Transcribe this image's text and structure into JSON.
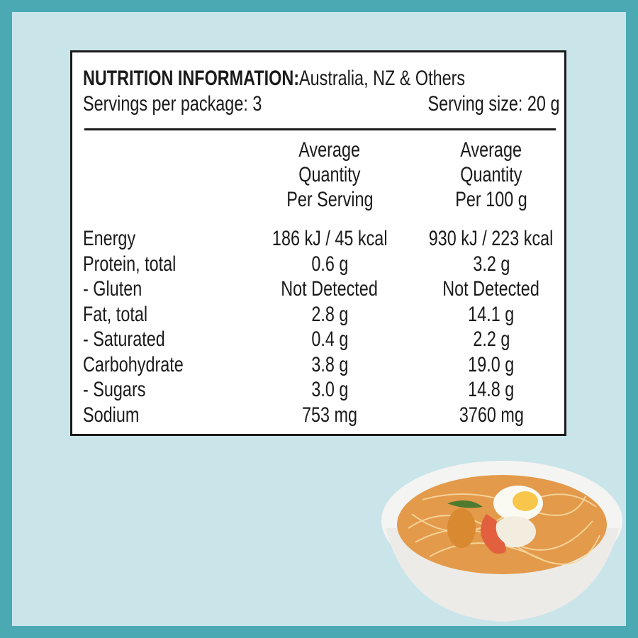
{
  "header": {
    "title_bold": "NUTRITION INFORMATION:",
    "title_rest": " Australia, NZ & Others",
    "servings_per_package": "Servings per package: 3",
    "serving_size": "Serving size: 20 g"
  },
  "columns": [
    {
      "lines": [
        "Average",
        "Quantity",
        "Per Serving"
      ]
    },
    {
      "lines": [
        "Average",
        "Quantity",
        "Per 100 g"
      ]
    }
  ],
  "rows": [
    {
      "label": "Energy",
      "per_serving": "186 kJ / 45 kcal",
      "per_100g": "930 kJ / 223 kcal"
    },
    {
      "label": "Protein, total",
      "per_serving": "0.6 g",
      "per_100g": "3.2 g"
    },
    {
      "label": "- Gluten",
      "per_serving": "Not Detected",
      "per_100g": "Not Detected"
    },
    {
      "label": "Fat, total",
      "per_serving": "2.8 g",
      "per_100g": "14.1 g"
    },
    {
      "label": "- Saturated",
      "per_serving": "0.4 g",
      "per_100g": "2.2 g"
    },
    {
      "label": "Carbohydrate",
      "per_serving": "3.8 g",
      "per_100g": "19.0 g"
    },
    {
      "label": "- Sugars",
      "per_serving": "3.0 g",
      "per_100g": "14.8 g"
    },
    {
      "label": "Sodium",
      "per_serving": "753 mg",
      "per_100g": "3760 mg"
    }
  ],
  "colors": {
    "frame": "#4aa9b3",
    "background": "#c9e5ea",
    "panel": "#ffffff",
    "text": "#1a1a1a"
  },
  "image": {
    "icon": "laksa-noodle-bowl"
  }
}
